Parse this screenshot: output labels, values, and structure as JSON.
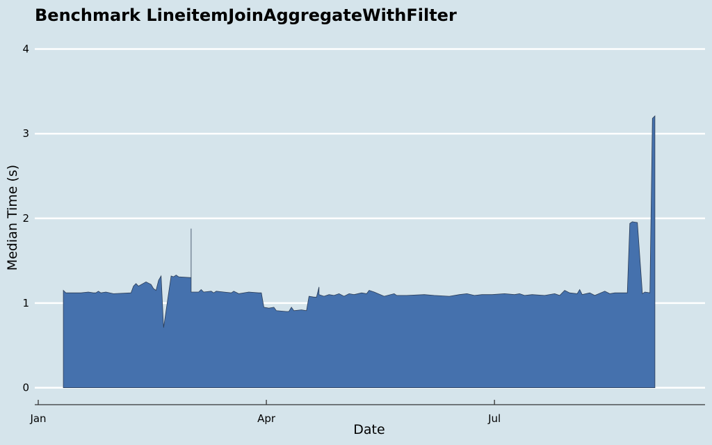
{
  "chart_data": {
    "type": "area",
    "title": "Benchmark LineitemJoinAggregateWithFilter",
    "xlabel": "Date",
    "ylabel": "Median Time (s)",
    "x_ticks": [
      {
        "date": "2024-01-01",
        "label": "Jan"
      },
      {
        "date": "2024-04-01",
        "label": "Apr"
      },
      {
        "date": "2024-07-01",
        "label": "Jul"
      }
    ],
    "xlim": [
      "2024-01-01",
      "2024-09-23"
    ],
    "y_ticks": [
      {
        "value": 0,
        "label": "0"
      },
      {
        "value": 1,
        "label": "1"
      },
      {
        "value": 2,
        "label": "2"
      },
      {
        "value": 3,
        "label": "3"
      },
      {
        "value": 4,
        "label": "4"
      }
    ],
    "ylim": [
      -0.2,
      4.25
    ],
    "grid": "horizontal",
    "colors": {
      "fill": "#4571ad",
      "edge": "#2b3c55",
      "background": "#d5e4eb",
      "grid": "#ffffff"
    },
    "series": [
      {
        "points": [
          [
            "2024-01-11",
            1.15
          ],
          [
            "2024-01-12",
            1.12
          ],
          [
            "2024-01-18",
            1.12
          ],
          [
            "2024-01-21",
            1.13
          ],
          [
            "2024-01-23",
            1.12
          ],
          [
            "2024-01-24",
            1.12
          ],
          [
            "2024-01-25",
            1.14
          ],
          [
            "2024-01-26",
            1.12
          ],
          [
            "2024-01-28",
            1.13
          ],
          [
            "2024-01-31",
            1.11
          ],
          [
            "2024-02-07",
            1.12
          ],
          [
            "2024-02-08",
            1.2
          ],
          [
            "2024-02-09",
            1.23
          ],
          [
            "2024-02-10",
            1.2
          ],
          [
            "2024-02-13",
            1.25
          ],
          [
            "2024-02-15",
            1.22
          ],
          [
            "2024-02-16",
            1.17
          ],
          [
            "2024-02-17",
            1.15
          ],
          [
            "2024-02-18",
            1.27
          ],
          [
            "2024-02-19",
            1.32
          ],
          [
            "2024-02-20",
            0.71
          ],
          [
            "2024-02-23",
            1.32
          ],
          [
            "2024-02-24",
            1.31
          ],
          [
            "2024-02-25",
            1.33
          ],
          [
            "2024-02-26",
            1.31
          ],
          [
            "2024-03-02",
            1.3
          ],
          [
            "2024-03-02",
            1.88
          ],
          [
            "2024-03-02",
            1.13
          ],
          [
            "2024-03-05",
            1.13
          ],
          [
            "2024-03-06",
            1.16
          ],
          [
            "2024-03-07",
            1.13
          ],
          [
            "2024-03-10",
            1.14
          ],
          [
            "2024-03-11",
            1.12
          ],
          [
            "2024-03-12",
            1.14
          ],
          [
            "2024-03-15",
            1.13
          ],
          [
            "2024-03-18",
            1.12
          ],
          [
            "2024-03-19",
            1.14
          ],
          [
            "2024-03-21",
            1.11
          ],
          [
            "2024-03-25",
            1.13
          ],
          [
            "2024-03-29",
            1.12
          ],
          [
            "2024-03-30",
            1.12
          ],
          [
            "2024-03-31",
            0.95
          ],
          [
            "2024-04-02",
            0.94
          ],
          [
            "2024-04-04",
            0.95
          ],
          [
            "2024-04-05",
            0.91
          ],
          [
            "2024-04-09",
            0.9
          ],
          [
            "2024-04-10",
            0.9
          ],
          [
            "2024-04-11",
            0.95
          ],
          [
            "2024-04-12",
            0.91
          ],
          [
            "2024-04-15",
            0.92
          ],
          [
            "2024-04-17",
            0.91
          ],
          [
            "2024-04-18",
            1.08
          ],
          [
            "2024-04-20",
            1.07
          ],
          [
            "2024-04-21",
            1.07
          ],
          [
            "2024-04-22",
            1.19
          ],
          [
            "2024-04-22",
            1.1
          ],
          [
            "2024-04-24",
            1.08
          ],
          [
            "2024-04-26",
            1.1
          ],
          [
            "2024-04-28",
            1.09
          ],
          [
            "2024-04-30",
            1.11
          ],
          [
            "2024-05-02",
            1.08
          ],
          [
            "2024-05-04",
            1.11
          ],
          [
            "2024-05-06",
            1.1
          ],
          [
            "2024-05-09",
            1.12
          ],
          [
            "2024-05-11",
            1.11
          ],
          [
            "2024-05-12",
            1.15
          ],
          [
            "2024-05-14",
            1.13
          ],
          [
            "2024-05-18",
            1.08
          ],
          [
            "2024-05-22",
            1.11
          ],
          [
            "2024-05-23",
            1.09
          ],
          [
            "2024-05-27",
            1.09
          ],
          [
            "2024-06-03",
            1.1
          ],
          [
            "2024-06-07",
            1.09
          ],
          [
            "2024-06-13",
            1.08
          ],
          [
            "2024-06-17",
            1.1
          ],
          [
            "2024-06-20",
            1.11
          ],
          [
            "2024-06-23",
            1.09
          ],
          [
            "2024-06-26",
            1.1
          ],
          [
            "2024-06-30",
            1.1
          ],
          [
            "2024-07-05",
            1.11
          ],
          [
            "2024-07-09",
            1.1
          ],
          [
            "2024-07-11",
            1.11
          ],
          [
            "2024-07-13",
            1.09
          ],
          [
            "2024-07-16",
            1.1
          ],
          [
            "2024-07-21",
            1.09
          ],
          [
            "2024-07-25",
            1.11
          ],
          [
            "2024-07-27",
            1.09
          ],
          [
            "2024-07-29",
            1.15
          ],
          [
            "2024-07-31",
            1.12
          ],
          [
            "2024-08-03",
            1.11
          ],
          [
            "2024-08-04",
            1.16
          ],
          [
            "2024-08-05",
            1.1
          ],
          [
            "2024-08-08",
            1.12
          ],
          [
            "2024-08-10",
            1.09
          ],
          [
            "2024-08-14",
            1.14
          ],
          [
            "2024-08-16",
            1.11
          ],
          [
            "2024-08-18",
            1.12
          ],
          [
            "2024-08-23",
            1.12
          ],
          [
            "2024-08-24",
            1.94
          ],
          [
            "2024-08-25",
            1.96
          ],
          [
            "2024-08-27",
            1.95
          ],
          [
            "2024-08-29",
            1.11
          ],
          [
            "2024-08-30",
            1.13
          ],
          [
            "2024-09-01",
            1.12
          ],
          [
            "2024-09-02",
            3.18
          ],
          [
            "2024-09-03",
            3.21
          ]
        ]
      }
    ]
  }
}
